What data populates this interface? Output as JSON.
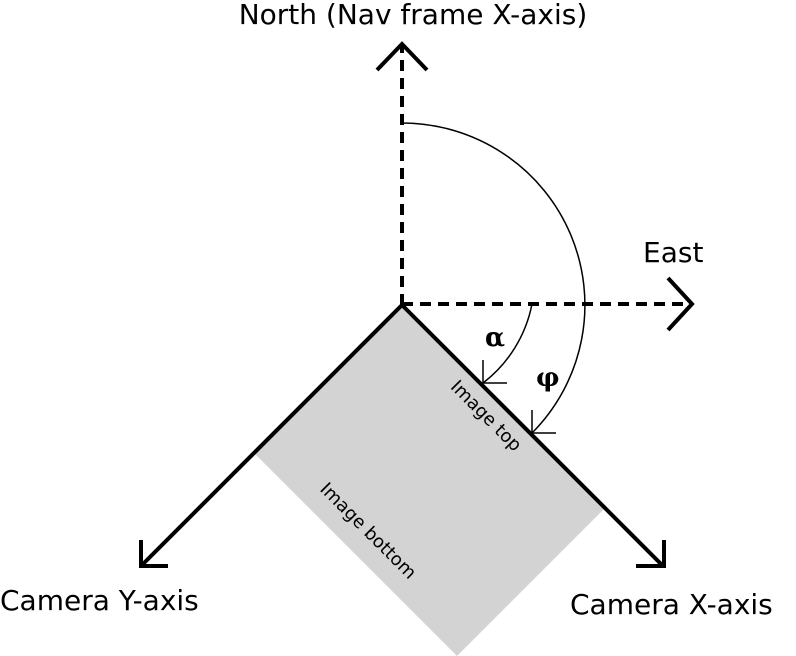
{
  "labels": {
    "north": "North (Nav frame X-axis)",
    "east": "East",
    "camera_y": "Camera Y-axis",
    "camera_x": "Camera X-axis",
    "image_top": "Image top",
    "image_bottom": "Image bottom",
    "alpha": "α",
    "phi": "φ"
  },
  "colors": {
    "image_fill": "#d3d3d3",
    "ink": "#000000"
  }
}
